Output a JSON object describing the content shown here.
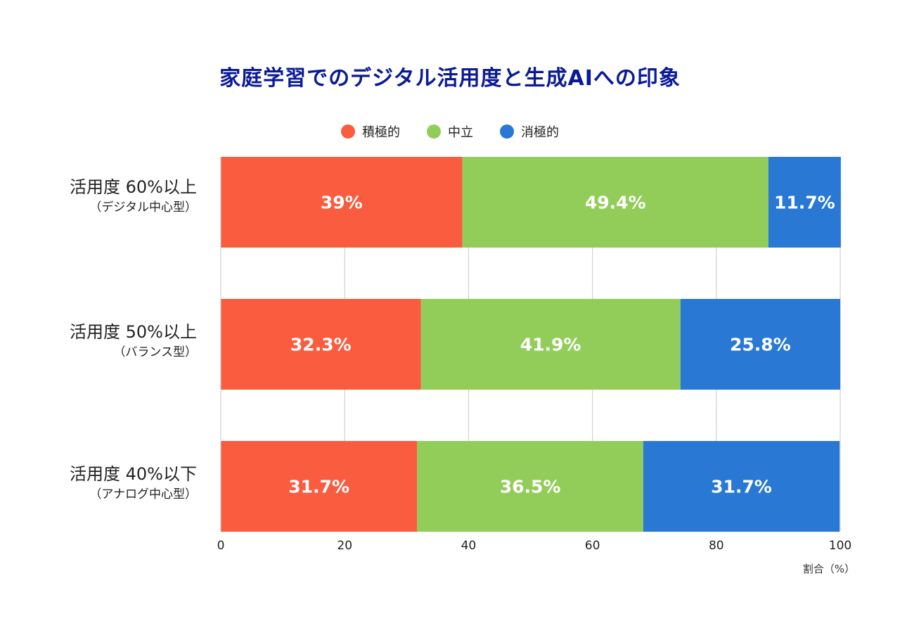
{
  "chart_data": {
    "type": "bar",
    "orientation": "horizontal",
    "stacked": true,
    "title": "家庭学習でのデジタル活用度と生成AIへの印象",
    "legend_placement": "top-center",
    "categories": [
      {
        "main": "活用度 60%以上",
        "sub": "（デジタル中心型）"
      },
      {
        "main": "活用度 50%以上",
        "sub": "（バランス型）"
      },
      {
        "main": "活用度 40%以下",
        "sub": "（アナログ中心型）"
      }
    ],
    "series": [
      {
        "name": "積極的",
        "color": "#f95c3f",
        "values": [
          39,
          32.3,
          31.7
        ],
        "labels": [
          "39%",
          "32.3%",
          "31.7%"
        ]
      },
      {
        "name": "中立",
        "color": "#92cd5a",
        "values": [
          49.4,
          41.9,
          36.5
        ],
        "labels": [
          "49.4%",
          "41.9%",
          "36.5%"
        ]
      },
      {
        "name": "消極的",
        "color": "#2878d4",
        "values": [
          11.7,
          25.8,
          31.7
        ],
        "labels": [
          "11.7%",
          "25.8%",
          "31.7%"
        ]
      }
    ],
    "xlim": [
      0,
      100
    ],
    "xticks": [
      "0",
      "20",
      "40",
      "60",
      "80",
      "100"
    ],
    "xlabel": "割合（%）",
    "grid": "vertical"
  }
}
